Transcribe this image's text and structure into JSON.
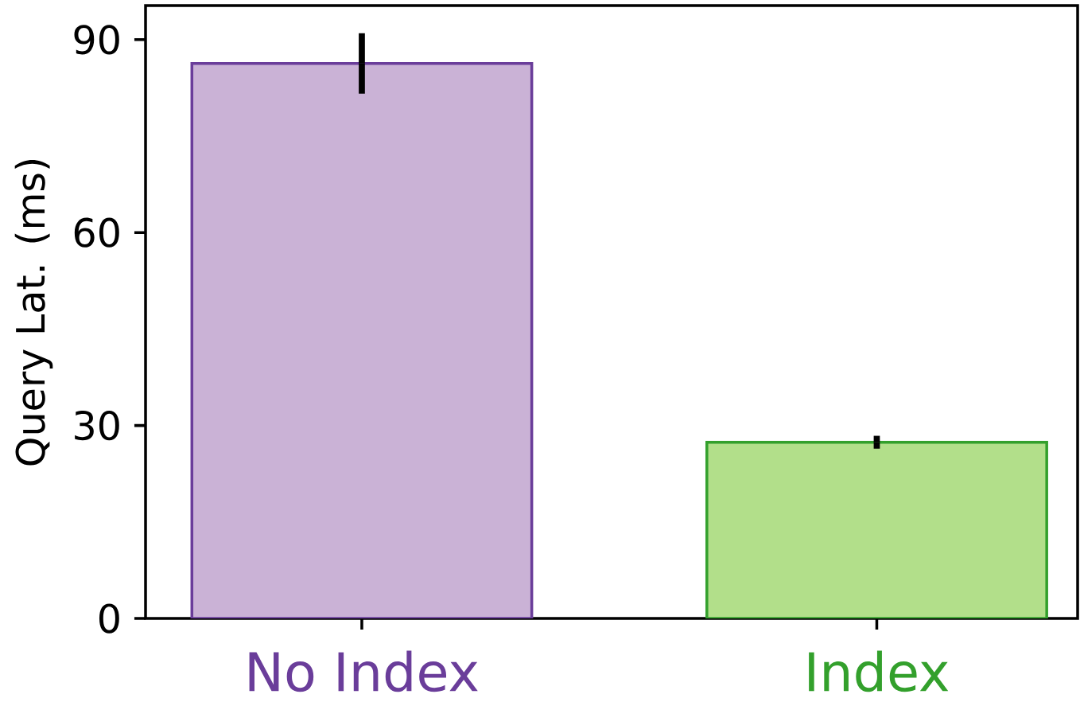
{
  "chart_data": {
    "type": "bar",
    "ylabel": "Query Lat. (ms)",
    "categories": [
      "No Index",
      "Index"
    ],
    "values": [
      86.3,
      27.4
    ],
    "errors": [
      [
        81.6,
        91.0
      ],
      [
        26.4,
        28.4
      ]
    ],
    "colors": [
      "#cab2d6",
      "#b2df8a"
    ],
    "ylim": [
      0,
      95.3
    ],
    "yticks": [
      0,
      30,
      60,
      90
    ]
  }
}
